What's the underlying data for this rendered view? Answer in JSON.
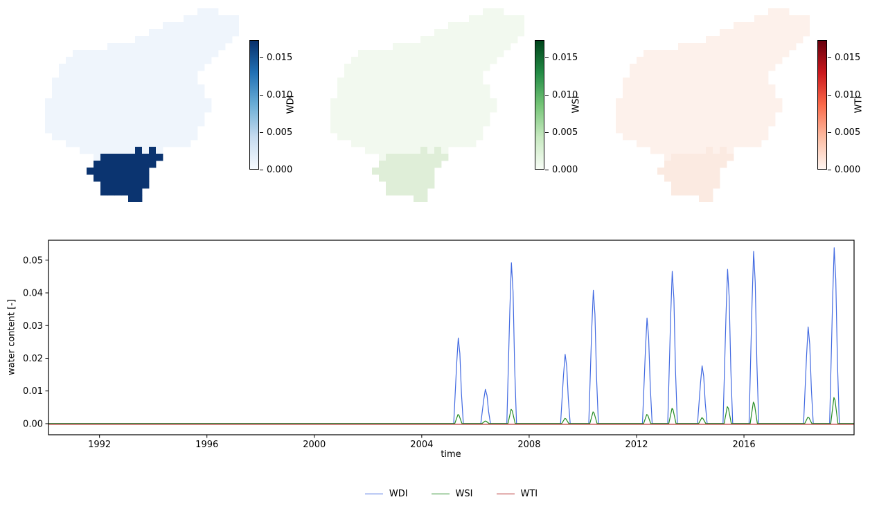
{
  "figure": {
    "background": "#ffffff"
  },
  "maps": [
    {
      "label": "WDI",
      "body_color": "#eff5fc",
      "hotspot_color": "#0b3470",
      "colorbar": {
        "gradient": [
          "#f7fbff",
          "#c6dbef",
          "#6baed6",
          "#2171b5",
          "#08306b"
        ],
        "ticks": [
          "0.000",
          "0.005",
          "0.010",
          "0.015"
        ],
        "vmax": 0.0174
      }
    },
    {
      "label": "WSI",
      "body_color": "#f2f9ef",
      "hotspot_color": "#dfeed8",
      "colorbar": {
        "gradient": [
          "#f7fcf5",
          "#c7e9c0",
          "#74c476",
          "#238b45",
          "#00441b"
        ],
        "ticks": [
          "0.000",
          "0.005",
          "0.010",
          "0.015"
        ],
        "vmax": 0.0174
      }
    },
    {
      "label": "WTI",
      "body_color": "#fdf1eb",
      "hotspot_color": "#fbeae1",
      "colorbar": {
        "gradient": [
          "#fff5f0",
          "#fcbba1",
          "#fb6a4a",
          "#cb181d",
          "#67000d"
        ],
        "ticks": [
          "0.000",
          "0.005",
          "0.010",
          "0.015"
        ],
        "vmax": 0.0174
      }
    }
  ],
  "map_grid": [
    "......................LLL...",
    "....................LLLLLLLL",
    ".................LLLLLLLLLLL",
    "...............LLLLLLLLLLLLL",
    ".............LLLLLLLLLLLLLL.",
    ".........LLLLLLLLLLLLLLLLL..",
    "....LLLLLLLLLLLLLLLLLLLLL...",
    "...LLLLLLLLLLLLLLLLLLLLL....",
    "..LLLLLLLLLLLLLLLLLLLLL.....",
    "..LLLLLLLLLLLLLLLLLLLL......",
    ".LLLLLLLLLLLLLLLLLLLLL......",
    ".LLLLLLLLLLLLLLLLLLLLLL.....",
    ".LLLLLLLLLLLLLLLLLLLLLL.....",
    "LLLLLLLLLLLLLLLLLLLLLLLL....",
    "LLLLLLLLLLLLLLLLLLLLLLLL....",
    "LLLLLLLLLLLLLLLLLLLLLLL.....",
    "LLLLLLLLLLLLLLLLLLLLLLL.....",
    "LLLLLLLLLLLLLLLLLLLLLL......",
    ".LLLLLLLLLLLLLLLLLLLLL......",
    "...LLLLLLLLLLLLLLLLLL.......",
    ".....LLLLLLLLDLDL...........",
    ".......LDDDDDDDDD...........",
    ".......DDDDDDDDD............",
    "......DDDDDDDDD.............",
    ".......DDDDDDDD.............",
    "........DDDDDDD.............",
    "........DDDDDD..............",
    "............DD.............."
  ],
  "chart_data": {
    "type": "line",
    "title": "",
    "xlabel": "time",
    "ylabel": "water content [-]",
    "xlim": [
      1990.1,
      2020.1
    ],
    "ylim": [
      -0.0034,
      0.0561
    ],
    "x_ticks": [
      1992,
      1996,
      2000,
      2004,
      2008,
      2012,
      2016
    ],
    "y_ticks": [
      "0.00",
      "0.01",
      "0.02",
      "0.03",
      "0.04",
      "0.05"
    ],
    "grid": false,
    "legend_position": "bottom-center",
    "series": [
      {
        "name": "WDI",
        "color": "#4169e1",
        "baseline": 0,
        "peaks": [
          [
            2005.37,
            0.0262
          ],
          [
            2006.38,
            0.0105
          ],
          [
            2007.35,
            0.0492
          ],
          [
            2009.35,
            0.0212
          ],
          [
            2010.4,
            0.0408
          ],
          [
            2012.4,
            0.0323
          ],
          [
            2013.34,
            0.0466
          ],
          [
            2014.45,
            0.0177
          ],
          [
            2015.4,
            0.0472
          ],
          [
            2016.37,
            0.0527
          ],
          [
            2018.4,
            0.0296
          ],
          [
            2019.37,
            0.0538
          ]
        ]
      },
      {
        "name": "WSI",
        "color": "#228b22",
        "baseline": 0,
        "peaks": [
          [
            2005.37,
            0.0028
          ],
          [
            2006.38,
            0.0008
          ],
          [
            2007.35,
            0.0044
          ],
          [
            2009.35,
            0.0016
          ],
          [
            2010.4,
            0.0036
          ],
          [
            2012.4,
            0.0028
          ],
          [
            2013.34,
            0.0047
          ],
          [
            2014.45,
            0.0018
          ],
          [
            2015.4,
            0.0052
          ],
          [
            2016.37,
            0.0066
          ],
          [
            2018.4,
            0.002
          ],
          [
            2019.37,
            0.008
          ]
        ]
      },
      {
        "name": "WTI",
        "color": "#b22222",
        "baseline": 0,
        "peaks": []
      }
    ]
  },
  "legend": {
    "items": [
      {
        "label": "WDI",
        "color": "#4169e1"
      },
      {
        "label": "WSI",
        "color": "#228b22"
      },
      {
        "label": "WTI",
        "color": "#b22222"
      }
    ]
  }
}
